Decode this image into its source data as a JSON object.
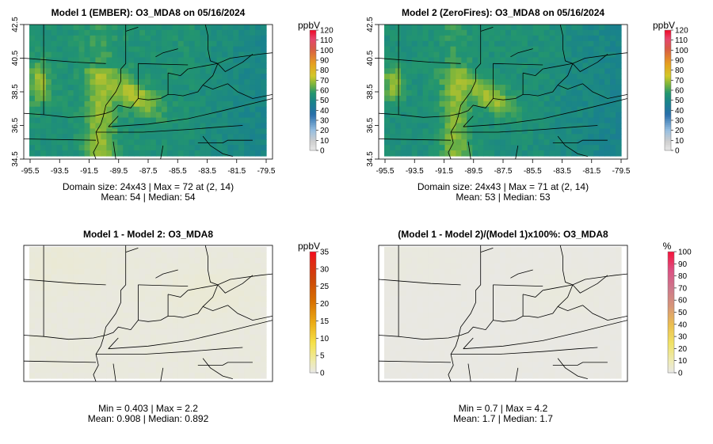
{
  "panels": [
    {
      "id": "m1",
      "title": "Model 1 (EMBER): O3_MDA8 on 05/16/2024",
      "unit": "ppbV",
      "colorbar": {
        "palette": "concentration",
        "max": 120,
        "ticks": [
          0,
          10,
          20,
          30,
          40,
          50,
          60,
          70,
          80,
          90,
          100,
          110,
          120
        ]
      },
      "x_ticks": [
        "-95.5",
        "-93.5",
        "-91.5",
        "-89.5",
        "-87.5",
        "-85.5",
        "-83.5",
        "-81.5",
        "-79.5"
      ],
      "y_ticks": [
        "34.5",
        "36.5",
        "38.5",
        "40.5",
        "42.5"
      ],
      "caption_line1": "Domain size: 24x43 | Max = 72 at (2, 14)",
      "caption_line2": "Mean: 54 |  Median: 54",
      "field": {
        "mean": 54,
        "max": 72,
        "min": 40
      }
    },
    {
      "id": "m2",
      "title": "Model 2 (ZeroFires): O3_MDA8 on 05/16/2024",
      "unit": "ppbV",
      "colorbar": {
        "palette": "concentration",
        "max": 120,
        "ticks": [
          0,
          10,
          20,
          30,
          40,
          50,
          60,
          70,
          80,
          90,
          100,
          110,
          120
        ]
      },
      "x_ticks": [
        "-95.5",
        "-93.5",
        "-91.5",
        "-89.5",
        "-87.5",
        "-85.5",
        "-83.5",
        "-81.5",
        "-79.5"
      ],
      "y_ticks": [
        "34.5",
        "36.5",
        "38.5",
        "40.5",
        "42.5"
      ],
      "caption_line1": "Domain size: 24x43 | Max = 71 at (2, 14)",
      "caption_line2": "Mean: 53 |  Median: 53",
      "field": {
        "mean": 53,
        "max": 71,
        "min": 39
      }
    },
    {
      "id": "diff",
      "title": "Model 1 - Model 2: O3_MDA8",
      "unit": "ppbV",
      "colorbar": {
        "palette": "difference",
        "max": 35,
        "ticks": [
          0,
          5,
          10,
          15,
          20,
          25,
          30,
          35
        ]
      },
      "x_ticks": [],
      "y_ticks": [],
      "caption_line1": "Min = 0.403 | Max = 2.2",
      "caption_line2": "Mean: 0.908 |  Median: 0.892",
      "field": {
        "mean": 0.908,
        "max": 2.2,
        "min": 0.403
      }
    },
    {
      "id": "pct",
      "title": "(Model 1 - Model 2)/(Model 1)x100%: O3_MDA8",
      "unit": "%",
      "colorbar": {
        "palette": "percent",
        "max": 100,
        "ticks": [
          0,
          10,
          20,
          30,
          40,
          50,
          60,
          70,
          80,
          90,
          100
        ]
      },
      "x_ticks": [],
      "y_ticks": [],
      "caption_line1": "Min = 0.7 | Max = 4.2",
      "caption_line2": "Mean: 1.7 |  Median: 1.7",
      "field": {
        "mean": 1.7,
        "max": 4.2,
        "min": 0.7
      }
    }
  ]
}
